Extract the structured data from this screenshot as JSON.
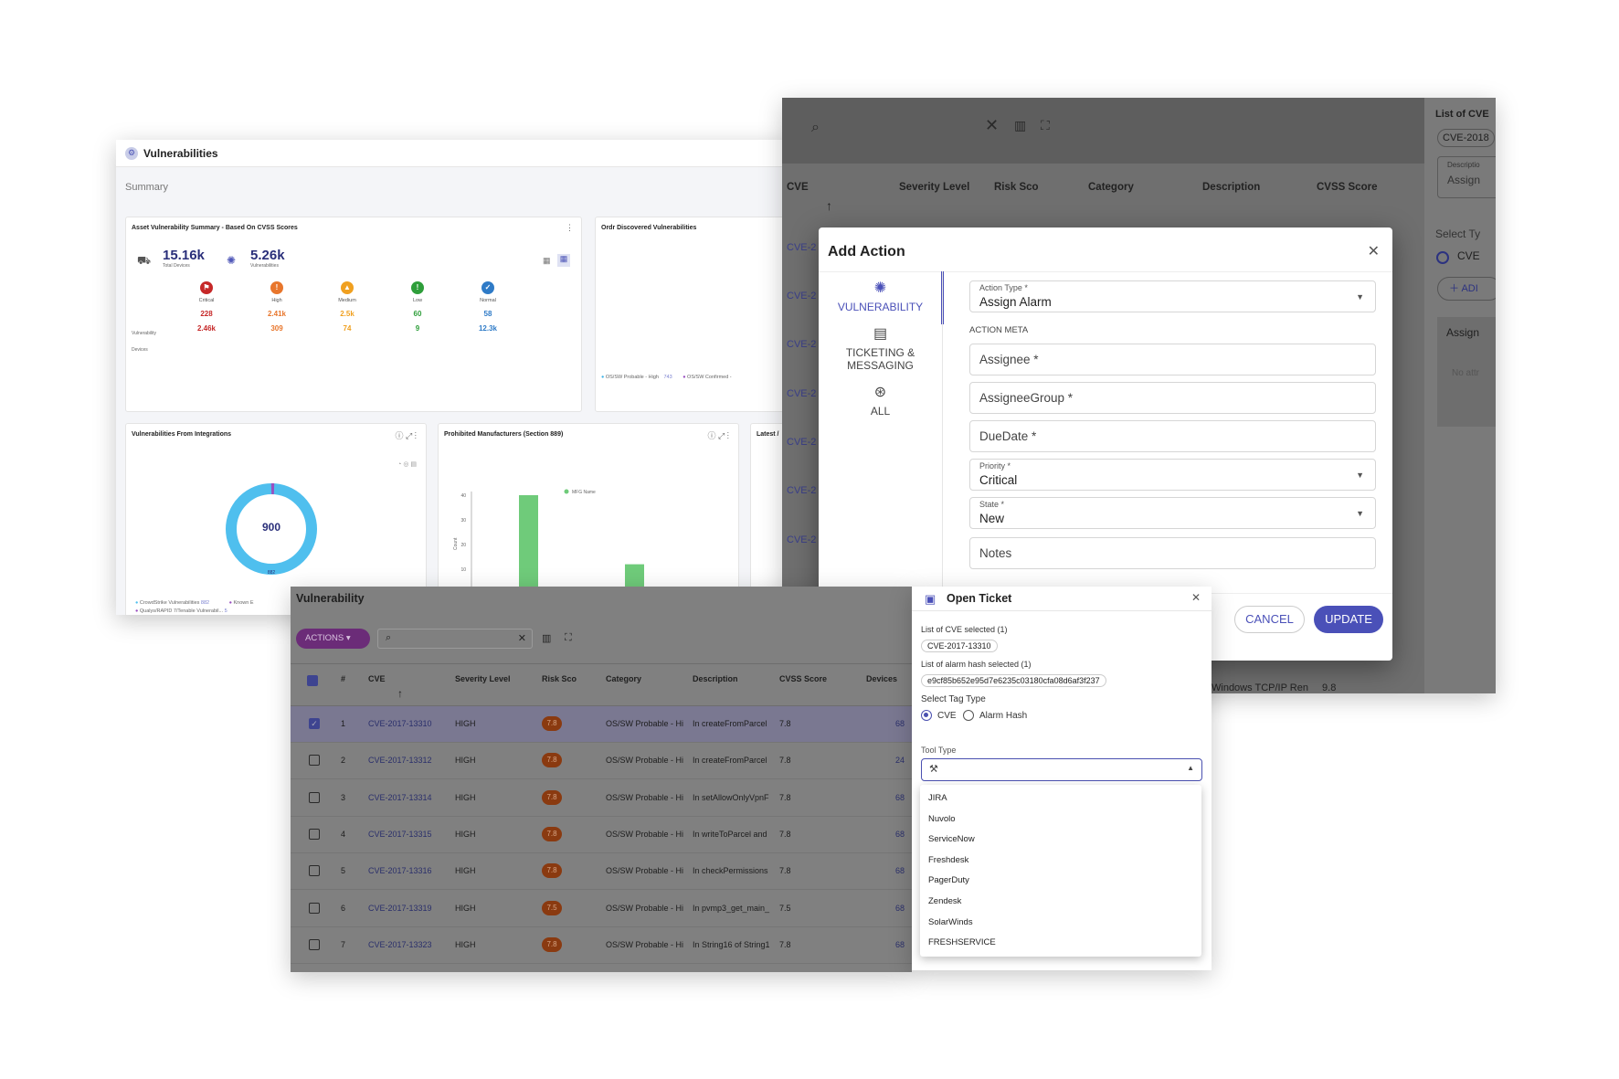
{
  "dashboard": {
    "title": "Vulnerabilities",
    "summary_label": "Summary",
    "asset_card": {
      "title": "Asset Vulnerability Summary - Based On CVSS Scores",
      "total_devices": "15.16k",
      "total_devices_label": "Total Devices",
      "vulnerabilities": "5.26k",
      "vulnerabilities_label": "Vulnerabilities",
      "row_labels": [
        "Vulnerability",
        "Devices"
      ],
      "severities": [
        {
          "name": "Critical",
          "vuln": "228",
          "devices": "2.46k",
          "color": "#c62828"
        },
        {
          "name": "High",
          "vuln": "2.41k",
          "devices": "309",
          "color": "#e8762c"
        },
        {
          "name": "Medium",
          "vuln": "2.5k",
          "devices": "74",
          "color": "#f0a020"
        },
        {
          "name": "Low",
          "vuln": "60",
          "devices": "9",
          "color": "#2e9e3a"
        },
        {
          "name": "Normal",
          "vuln": "58",
          "devices": "12.3k",
          "color": "#2f7bc7"
        }
      ]
    },
    "ordr_card": {
      "title": "Ordr Discovered Vulnerabilities",
      "legend": [
        "OS/SW Probable - High",
        "743",
        "OS/SW Confirmed -"
      ]
    },
    "integrations_card": {
      "title": "Vulnerabilities From Integrations",
      "donut_value": "900",
      "donut_bottom": "882",
      "legend": [
        "CrowdStrike Vulnerabilities",
        "882",
        "Known E",
        "Qualys/RAPID 7/Tenable Vulnerabil...",
        "5"
      ]
    },
    "prohibited_card": {
      "title": "Prohibited Manufacturers (Section 889)",
      "legend": "MFG Name",
      "ylabel": "Count"
    },
    "latest_card": {
      "title": "Latest /"
    }
  },
  "chart_data": {
    "type": "bar",
    "title": "Prohibited Manufacturers (Section 889)",
    "xlabel": "",
    "ylabel": "Count",
    "ylim": [
      0,
      40
    ],
    "yticks": [
      "40",
      "30",
      "20",
      "10"
    ],
    "series": [
      {
        "name": "MFG Name",
        "values": [
          40,
          12
        ]
      }
    ],
    "colors": [
      "#6fcb7a"
    ]
  },
  "add_action_bg": {
    "headers": [
      "CVE",
      "Severity Level",
      "Risk Sco",
      "Category",
      "Description",
      "CVSS Score"
    ],
    "cve_rows": [
      "CVE-2",
      "CVE-2",
      "CVE-2",
      "CVE-2",
      "CVE-2",
      "CVE-2",
      "CVE-2"
    ],
    "right_panel": {
      "title": "List of CVE",
      "chip": "CVE-2018",
      "desc_label": "Descriptio",
      "desc_value": "Assign",
      "select_label": "Select Ty",
      "radio_label": "CVE",
      "add_label": "ADI",
      "assign_label": "Assign",
      "no_attr": "No attr"
    },
    "footer_text": "Windows TCP/IP Ren",
    "footer_score": "9.8"
  },
  "add_action": {
    "title": "Add Action",
    "tabs": [
      {
        "label": "VULNERABILITY",
        "icon": "bug-icon"
      },
      {
        "label": "TICKETING & MESSAGING",
        "icon": "ticket-icon"
      },
      {
        "label": "ALL",
        "icon": "all-icon"
      }
    ],
    "action_type_label": "Action Type *",
    "action_type_value": "Assign Alarm",
    "action_meta_label": "ACTION META",
    "assignee_placeholder": "Assignee *",
    "assignee_group_placeholder": "AssigneeGroup *",
    "due_date_placeholder": "DueDate *",
    "priority_label": "Priority *",
    "priority_value": "Critical",
    "state_label": "State *",
    "state_value": "New",
    "notes_placeholder": "Notes",
    "cancel_label": "CANCEL",
    "update_label": "UPDATE",
    "accent": "#4a50b8"
  },
  "vuln_table": {
    "title": "Vulnerability",
    "actions_label": "ACTIONS",
    "columns": [
      "#",
      "CVE",
      "Severity Level",
      "Risk Sco",
      "Category",
      "Description",
      "CVSS Score",
      "Devices"
    ],
    "rows": [
      {
        "num": "1",
        "cve": "CVE-2017-13310",
        "sev": "HIGH",
        "risk": "7.8",
        "cat": "OS/SW Probable - Hi",
        "desc": "In createFromParcel",
        "cvss": "7.8",
        "dev": "68",
        "checked": true
      },
      {
        "num": "2",
        "cve": "CVE-2017-13312",
        "sev": "HIGH",
        "risk": "7.8",
        "cat": "OS/SW Probable - Hi",
        "desc": "In createFromParcel",
        "cvss": "7.8",
        "dev": "24",
        "checked": false
      },
      {
        "num": "3",
        "cve": "CVE-2017-13314",
        "sev": "HIGH",
        "risk": "7.8",
        "cat": "OS/SW Probable - Hi",
        "desc": "In setAllowOnlyVpnF",
        "cvss": "7.8",
        "dev": "68",
        "checked": false
      },
      {
        "num": "4",
        "cve": "CVE-2017-13315",
        "sev": "HIGH",
        "risk": "7.8",
        "cat": "OS/SW Probable - Hi",
        "desc": "In writeToParcel and",
        "cvss": "7.8",
        "dev": "68",
        "checked": false
      },
      {
        "num": "5",
        "cve": "CVE-2017-13316",
        "sev": "HIGH",
        "risk": "7.8",
        "cat": "OS/SW Probable - Hi",
        "desc": "In checkPermissions",
        "cvss": "7.8",
        "dev": "68",
        "checked": false
      },
      {
        "num": "6",
        "cve": "CVE-2017-13319",
        "sev": "HIGH",
        "risk": "7.5",
        "cat": "OS/SW Probable - Hi",
        "desc": "In pvmp3_get_main_",
        "cvss": "7.5",
        "dev": "68",
        "checked": false
      },
      {
        "num": "7",
        "cve": "CVE-2017-13323",
        "sev": "HIGH",
        "risk": "7.8",
        "cat": "OS/SW Probable - Hi",
        "desc": "In String16 of String1",
        "cvss": "7.8",
        "dev": "68",
        "checked": false
      }
    ]
  },
  "open_ticket": {
    "title": "Open Ticket",
    "cve_list_label": "List of CVE selected (1)",
    "cve_chip": "CVE-2017-13310",
    "hash_list_label": "List of alarm hash selected (1)",
    "hash_chip": "e9cf85b652e95d7e6235c03180cfa08d6af3f237",
    "tag_type_label": "Select Tag Type",
    "radio_cve": "CVE",
    "radio_hash": "Alarm Hash",
    "tool_type_label": "Tool Type",
    "tools": [
      "JIRA",
      "Nuvolo",
      "ServiceNow",
      "Freshdesk",
      "PagerDuty",
      "Zendesk",
      "SolarWinds",
      "FRESHSERVICE"
    ]
  }
}
